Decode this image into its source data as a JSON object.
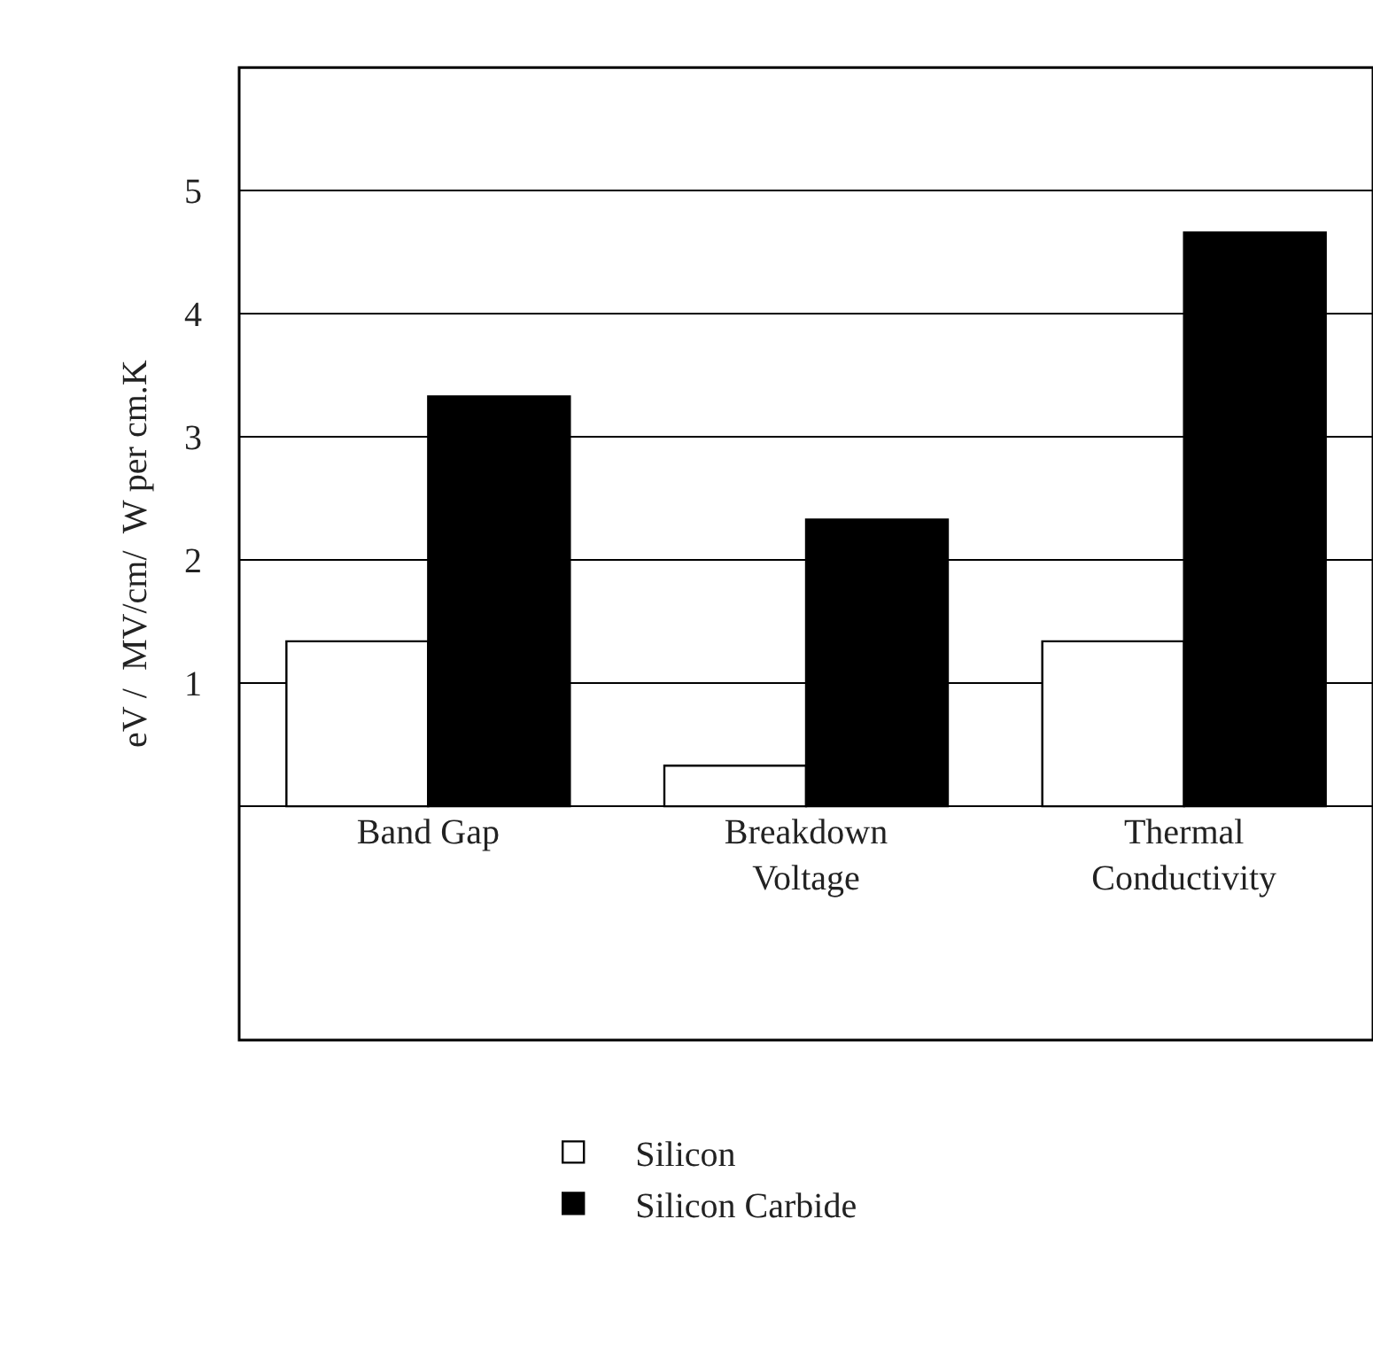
{
  "chart_data": {
    "type": "bar",
    "ylabel": "eV /  MV/cm/  W per cm.K",
    "categories": [
      "Band Gap",
      "Breakdown\nVoltage",
      "Thermal\nConductivity"
    ],
    "series": [
      {
        "name": "Silicon",
        "color": "#ffffff",
        "values": [
          1.34,
          0.33,
          1.34
        ]
      },
      {
        "name": "Silicon Carbide",
        "color": "#000000",
        "values": [
          3.33,
          2.33,
          4.66
        ]
      }
    ],
    "ylim": [
      -1.9,
      6
    ],
    "yticks": [
      {
        "value": 0,
        "label": null
      },
      1,
      2,
      3,
      4,
      5,
      {
        "value": 6,
        "label": null
      }
    ],
    "grid": "y",
    "legend": "bottom"
  }
}
